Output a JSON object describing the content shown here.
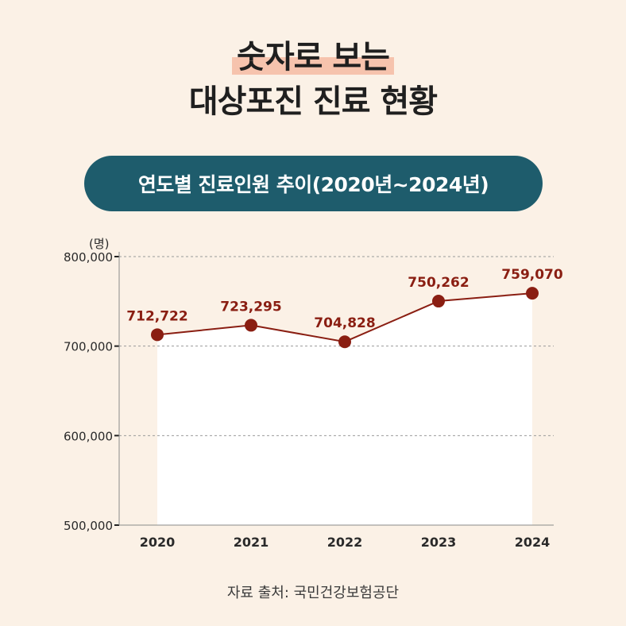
{
  "title": {
    "highlight": "숫자로 보는",
    "line2": "대상포진 진료 현황"
  },
  "subtitle_pill": "연도별 진료인원 추이(2020년~2024년)",
  "chart_data": {
    "type": "line",
    "unit_label": "(명)",
    "categories": [
      "2020",
      "2021",
      "2022",
      "2023",
      "2024"
    ],
    "values": [
      712722,
      723295,
      704828,
      750262,
      759070
    ],
    "value_labels": [
      "712,722",
      "723,295",
      "704,828",
      "750,262",
      "759,070"
    ],
    "ylim": [
      500000,
      800000
    ],
    "yticks": [
      500000,
      600000,
      700000,
      800000
    ],
    "ytick_labels": [
      "500,000",
      "600,000",
      "700,000",
      "800,000"
    ],
    "grid": true,
    "line_color": "#8a1e12",
    "label_color": "#8a1e12",
    "fill_color": "#ffffff"
  },
  "source": "자료 출처: 국민건강보험공단"
}
